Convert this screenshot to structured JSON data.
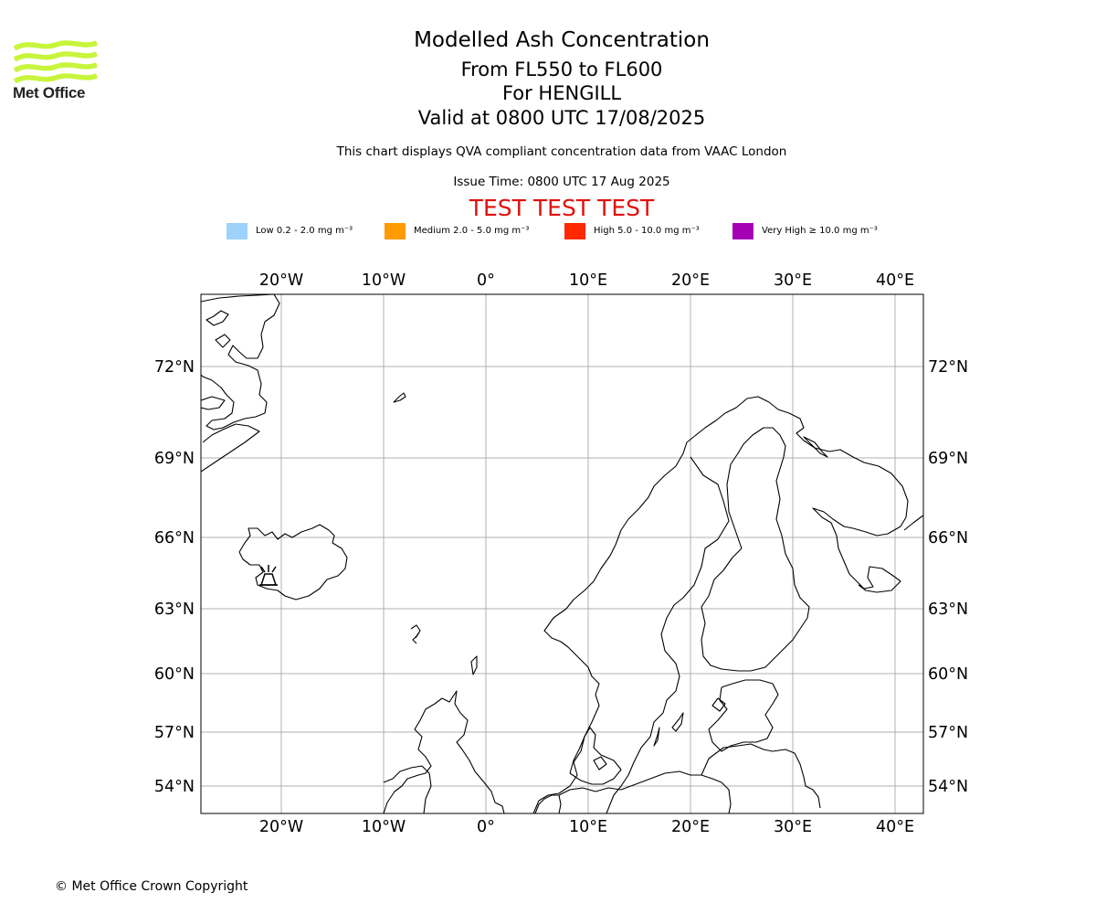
{
  "branding": {
    "logo_text": "Met Office",
    "logo_icon": "met-office-wave-logo-icon",
    "logo_color": "#c8f53c"
  },
  "header": {
    "title": "Modelled Ash Concentration",
    "levels": "From FL550 to FL600",
    "location": "For HENGILL",
    "valid": "Valid at 0800 UTC 17/08/2025",
    "description": "This chart displays QVA compliant concentration data from VAAC London",
    "issue_time": "Issue Time: 0800 UTC 17 Aug 2025",
    "test_banner": "TEST TEST TEST"
  },
  "legend": [
    {
      "label": "Low 0.2 - 2.0 mg m⁻³",
      "color": "#9ed2fb"
    },
    {
      "label": "Medium 2.0 - 5.0 mg m⁻³",
      "color": "#ff9a00"
    },
    {
      "label": "High 5.0 - 10.0 mg m⁻³",
      "color": "#ff2800"
    },
    {
      "label": "Very High ≥ 10.0 mg m⁻³",
      "color": "#a600b4"
    }
  ],
  "map": {
    "lon_ticks": [
      "20°W",
      "10°W",
      "0°",
      "10°E",
      "20°E",
      "30°E",
      "40°E"
    ],
    "lat_ticks": [
      "72°N",
      "69°N",
      "66°N",
      "63°N",
      "60°N",
      "57°N",
      "54°N"
    ],
    "grid": true,
    "volcano_marker": "volcano-icon",
    "volcano_name": "HENGILL"
  },
  "footer": {
    "copyright": "© Met Office Crown Copyright"
  }
}
